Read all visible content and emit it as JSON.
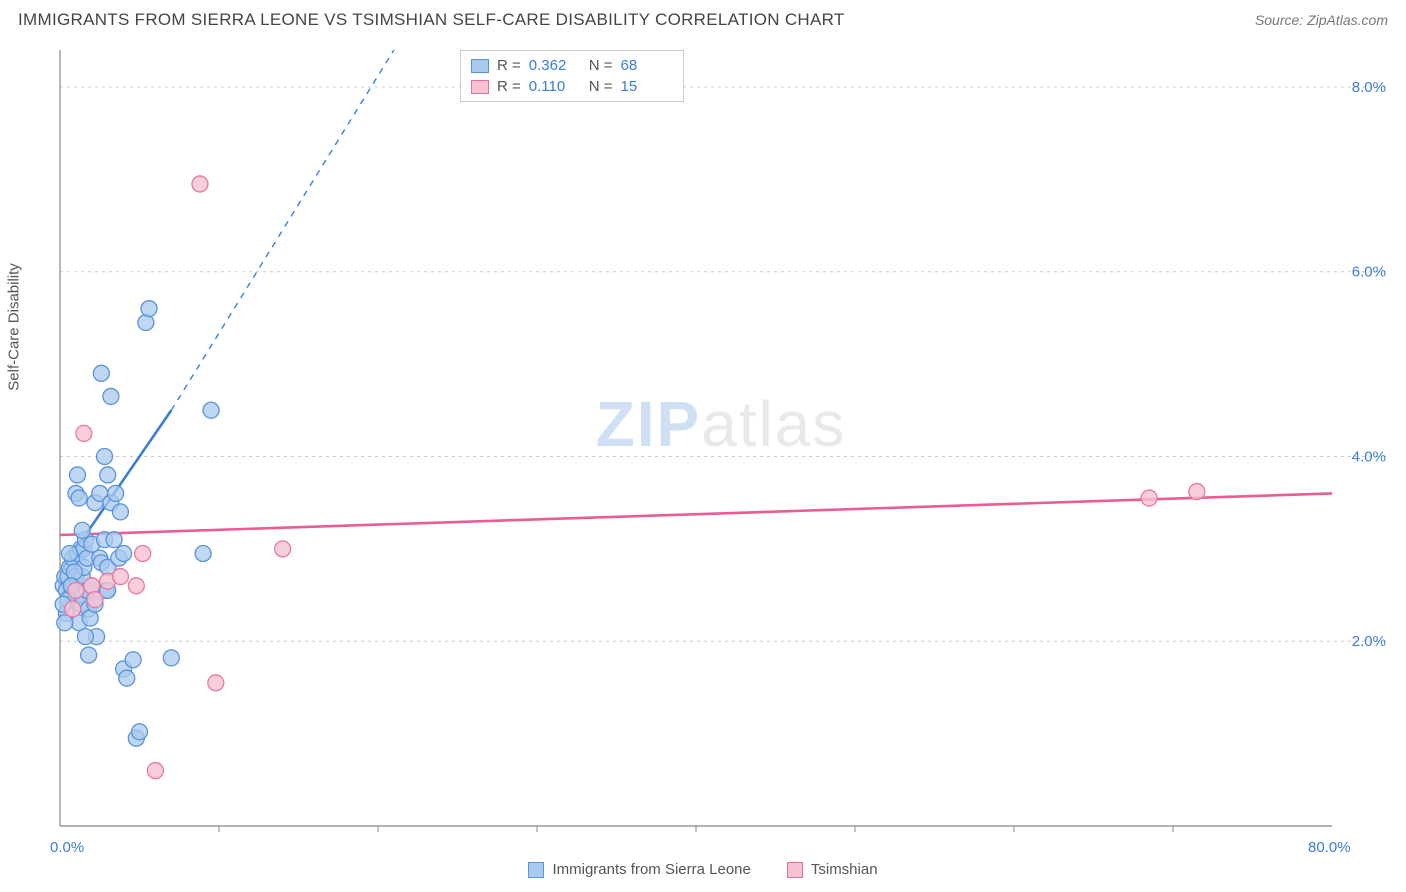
{
  "header": {
    "title": "IMMIGRANTS FROM SIERRA LEONE VS TSIMSHIAN SELF-CARE DISABILITY CORRELATION CHART",
    "source_label": "Source:",
    "source_name": "ZipAtlas.com"
  },
  "watermark": {
    "part1": "ZIP",
    "part2": "atlas"
  },
  "axes": {
    "y_label": "Self-Care Disability",
    "x_min": 0,
    "x_max": 80,
    "y_min": 0,
    "y_max": 8.4,
    "x_ticks": [
      {
        "v": 0,
        "label": "0.0%"
      },
      {
        "v": 80,
        "label": "80.0%"
      }
    ],
    "x_minor_ticks": [
      10,
      20,
      30,
      40,
      50,
      60,
      70
    ],
    "y_ticks": [
      {
        "v": 2,
        "label": "2.0%"
      },
      {
        "v": 4,
        "label": "4.0%"
      },
      {
        "v": 6,
        "label": "6.0%"
      },
      {
        "v": 8,
        "label": "8.0%"
      }
    ],
    "tick_label_color": "#3b7dd8",
    "tick_label_fontsize": 15,
    "grid_color": "#cccccc",
    "axis_color": "#888888"
  },
  "correlation_box": {
    "rows": [
      {
        "r_label": "R =",
        "r": "0.362",
        "n_label": "N =",
        "n": "68",
        "swatch_fill": "#a9c9ee",
        "swatch_stroke": "#5a94d8"
      },
      {
        "r_label": "R =",
        "r": "0.110",
        "n_label": "N =",
        "n": "15",
        "swatch_fill": "#f6c2d2",
        "swatch_stroke": "#e76f9a"
      }
    ]
  },
  "legend": {
    "items": [
      {
        "label": "Immigrants from Sierra Leone",
        "fill": "#a9c9ee",
        "stroke": "#5a94d8"
      },
      {
        "label": "Tsimshian",
        "fill": "#f6c2d2",
        "stroke": "#e76f9a"
      }
    ]
  },
  "series": [
    {
      "name": "Immigrants from Sierra Leone",
      "color_fill": "#a9c9ee",
      "color_stroke": "#5a94d8",
      "marker_r": 8,
      "marker_opacity": 0.75,
      "trend": {
        "type": "line",
        "x1": 0.2,
        "y1": 2.8,
        "x2": 7.0,
        "y2": 4.5,
        "stroke": "#3b7dd8",
        "width": 2.6,
        "dash_x1": 7.0,
        "dash_y1": 4.5,
        "dash_x2": 21.0,
        "dash_y2": 8.4
      },
      "points": [
        [
          0.2,
          2.6
        ],
        [
          0.3,
          2.7
        ],
        [
          0.4,
          2.55
        ],
        [
          0.5,
          2.7
        ],
        [
          0.6,
          2.8
        ],
        [
          0.7,
          2.5
        ],
        [
          0.8,
          2.9
        ],
        [
          0.8,
          2.6
        ],
        [
          1.0,
          2.7
        ],
        [
          1.0,
          2.5
        ],
        [
          1.1,
          2.95
        ],
        [
          1.2,
          2.5
        ],
        [
          1.2,
          2.2
        ],
        [
          1.3,
          3.0
        ],
        [
          1.3,
          2.4
        ],
        [
          1.4,
          2.7
        ],
        [
          1.5,
          2.8
        ],
        [
          1.5,
          3.0
        ],
        [
          1.6,
          3.1
        ],
        [
          1.7,
          2.9
        ],
        [
          1.7,
          2.55
        ],
        [
          1.8,
          2.35
        ],
        [
          1.9,
          2.25
        ],
        [
          2.0,
          2.6
        ],
        [
          2.0,
          3.05
        ],
        [
          2.2,
          2.4
        ],
        [
          2.2,
          3.5
        ],
        [
          2.3,
          2.05
        ],
        [
          2.5,
          2.9
        ],
        [
          2.5,
          3.6
        ],
        [
          2.6,
          2.85
        ],
        [
          2.8,
          3.1
        ],
        [
          2.9,
          2.55
        ],
        [
          3.0,
          2.8
        ],
        [
          3.0,
          3.8
        ],
        [
          3.2,
          3.5
        ],
        [
          3.4,
          3.1
        ],
        [
          3.5,
          3.6
        ],
        [
          3.7,
          2.9
        ],
        [
          3.8,
          3.4
        ],
        [
          4.0,
          2.95
        ],
        [
          4.0,
          1.7
        ],
        [
          4.2,
          1.6
        ],
        [
          4.6,
          1.8
        ],
        [
          4.8,
          0.95
        ],
        [
          5.0,
          1.02
        ],
        [
          5.4,
          5.45
        ],
        [
          5.6,
          5.6
        ],
        [
          2.6,
          4.9
        ],
        [
          2.8,
          4.0
        ],
        [
          3.2,
          4.65
        ],
        [
          1.0,
          3.6
        ],
        [
          1.1,
          3.8
        ],
        [
          1.2,
          3.55
        ],
        [
          0.6,
          2.95
        ],
        [
          0.5,
          2.45
        ],
        [
          0.4,
          2.3
        ],
        [
          0.3,
          2.2
        ],
        [
          1.4,
          3.2
        ],
        [
          1.6,
          2.05
        ],
        [
          1.8,
          1.85
        ],
        [
          7.0,
          1.82
        ],
        [
          9.0,
          2.95
        ],
        [
          3.0,
          2.55
        ],
        [
          0.9,
          2.75
        ],
        [
          0.7,
          2.6
        ],
        [
          0.2,
          2.4
        ],
        [
          9.5,
          4.5
        ]
      ]
    },
    {
      "name": "Tsimshian",
      "color_fill": "#f6c2d2",
      "color_stroke": "#e879a1",
      "marker_r": 8,
      "marker_opacity": 0.8,
      "trend": {
        "type": "line",
        "x1": 0,
        "y1": 3.15,
        "x2": 80,
        "y2": 3.6,
        "stroke": "#ea5c93",
        "width": 2.6
      },
      "points": [
        [
          0.8,
          2.35
        ],
        [
          1.5,
          4.25
        ],
        [
          2.0,
          2.6
        ],
        [
          3.0,
          2.65
        ],
        [
          3.8,
          2.7
        ],
        [
          4.8,
          2.6
        ],
        [
          5.2,
          2.95
        ],
        [
          6.0,
          0.6
        ],
        [
          8.8,
          6.95
        ],
        [
          9.8,
          1.55
        ],
        [
          14.0,
          3.0
        ],
        [
          68.5,
          3.55
        ],
        [
          71.5,
          3.62
        ],
        [
          2.2,
          2.45
        ],
        [
          1.0,
          2.55
        ]
      ]
    }
  ]
}
